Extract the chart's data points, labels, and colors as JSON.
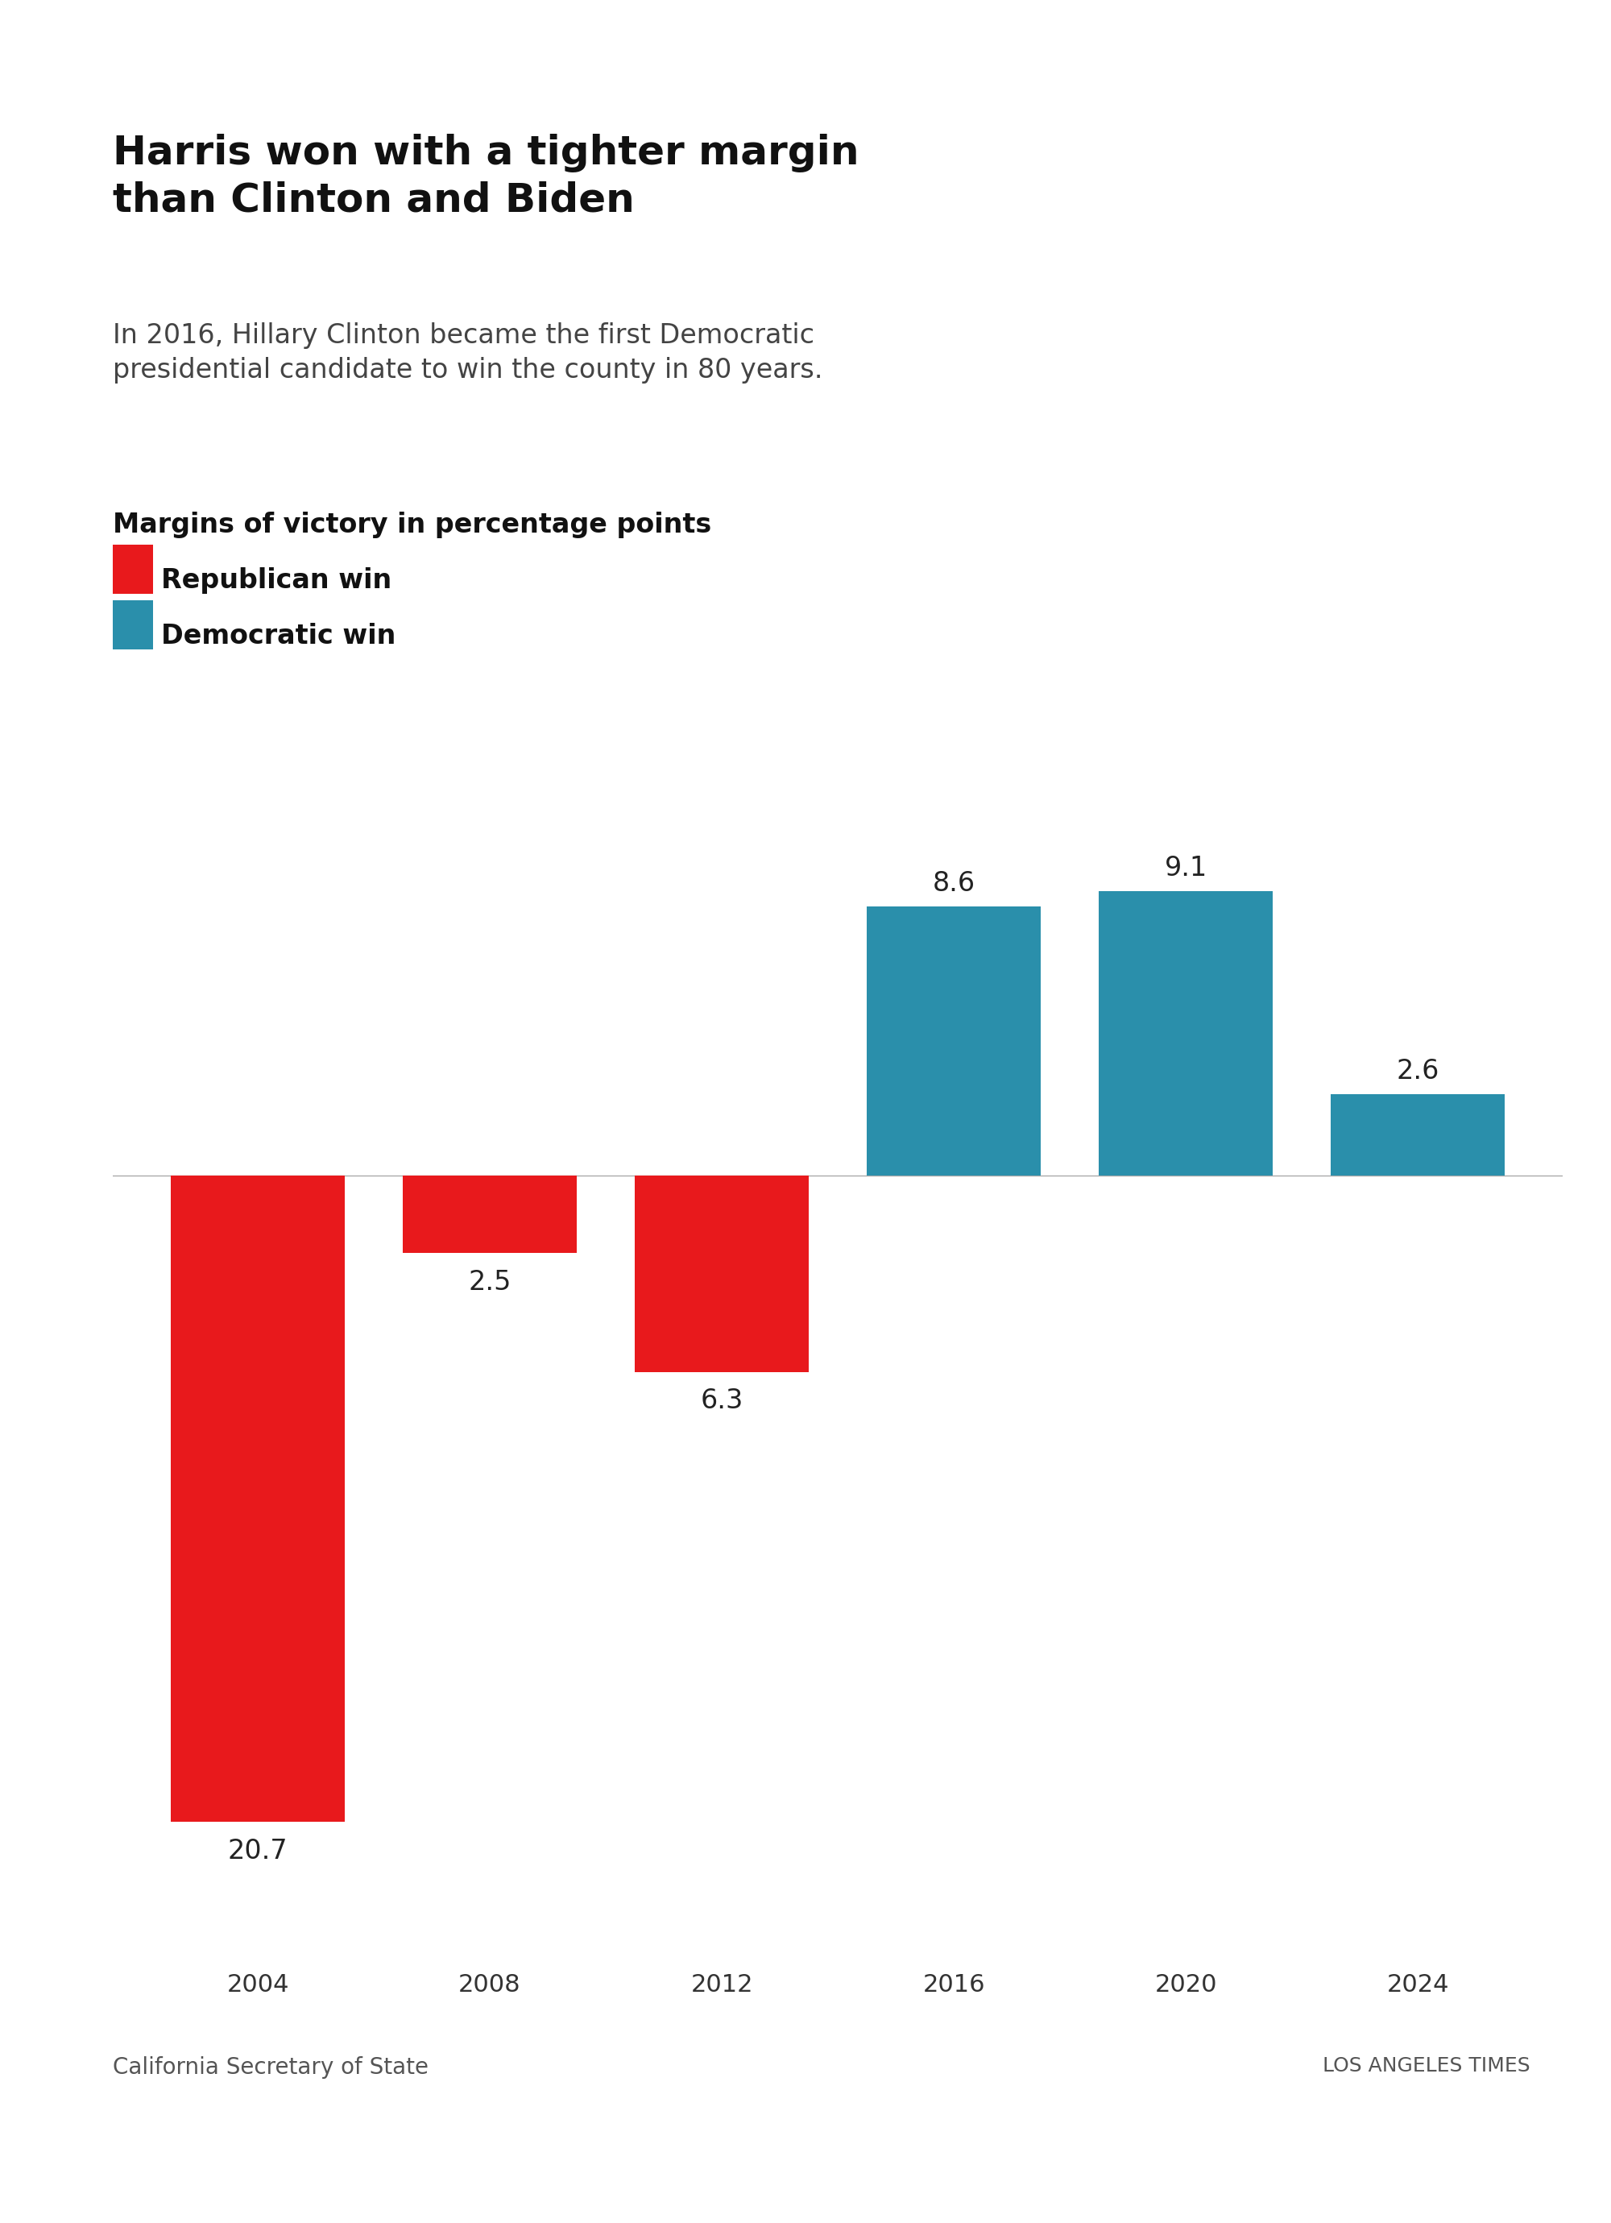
{
  "title": "Harris won with a tighter margin\nthan Clinton and Biden",
  "subtitle": "In 2016, Hillary Clinton became the first Democratic\npresidential candidate to win the county in 80 years.",
  "legend_label": "Margins of victory in percentage points",
  "legend_items": [
    "Republican win",
    "Democratic win"
  ],
  "years": [
    2004,
    2008,
    2012,
    2016,
    2020,
    2024
  ],
  "values": [
    -20.7,
    -2.5,
    -6.3,
    8.6,
    9.1,
    2.6
  ],
  "colors": [
    "#e8191c",
    "#e8191c",
    "#e8191c",
    "#2a8fab",
    "#2a8fab",
    "#2a8fab"
  ],
  "rep_color": "#e8191c",
  "dem_color": "#2a8fab",
  "bar_labels": [
    "20.7",
    "2.5",
    "6.3",
    "8.6",
    "9.1",
    "2.6"
  ],
  "ylim": [
    -25,
    12
  ],
  "source": "California Secretary of State",
  "credit": "LOS ANGELES TIMES",
  "background_color": "#ffffff",
  "title_fontsize": 36,
  "subtitle_fontsize": 24,
  "label_fontsize": 24,
  "axis_fontsize": 22,
  "source_fontsize": 20,
  "bar_width": 0.65
}
